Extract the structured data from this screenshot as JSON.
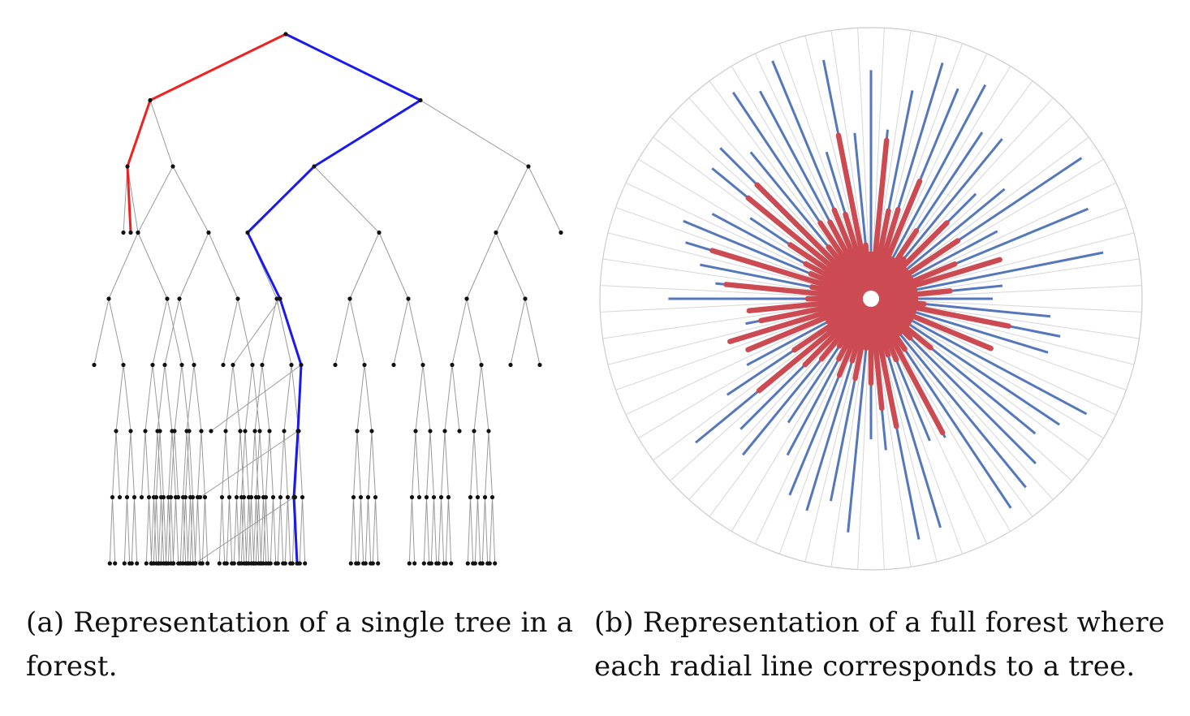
{
  "figure_a": {
    "caption_line1": "(a) Representation of a single tree in a",
    "caption_line2": "forest.",
    "colors": {
      "edge": "#9a9a9a",
      "node": "#111111",
      "highlight_left_path": "#ee2222",
      "highlight_right_path": "#1a1aee"
    },
    "max_depth": 8
  },
  "figure_b": {
    "caption_line1": "(b) Representation of a full forest where",
    "caption_line2": "each radial line corresponds to a tree.",
    "colors": {
      "spoke_grid": "#d6d6d6",
      "circle_grid": "#cccccc",
      "tree_blue": "#5577bb",
      "tree_red": "#cc4a52"
    },
    "tree_count": 64
  }
}
